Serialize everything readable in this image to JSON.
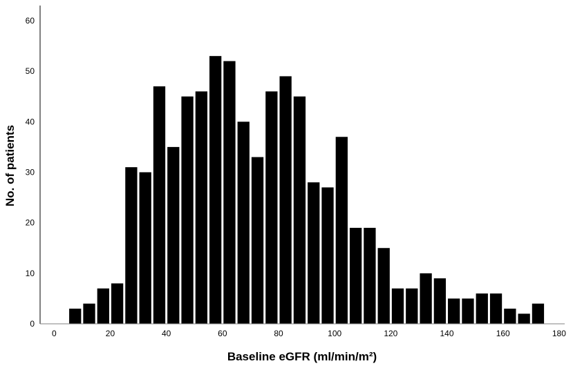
{
  "chart_data": {
    "type": "bar",
    "title": "",
    "xlabel": "Baseline eGFR (ml/min/m²)",
    "ylabel": "No. of patients",
    "xlim": [
      -5,
      182
    ],
    "ylim": [
      0,
      63
    ],
    "bin_width": 5,
    "x_ticks": [
      0,
      20,
      40,
      60,
      80,
      100,
      120,
      140,
      160,
      180
    ],
    "y_ticks": [
      0,
      10,
      20,
      30,
      40,
      50,
      60
    ],
    "grid": false,
    "bar_color": "#000000",
    "bins": [
      {
        "x": 7.5,
        "value": 3
      },
      {
        "x": 12.5,
        "value": 4
      },
      {
        "x": 17.5,
        "value": 7
      },
      {
        "x": 22.5,
        "value": 8
      },
      {
        "x": 27.5,
        "value": 31
      },
      {
        "x": 32.5,
        "value": 30
      },
      {
        "x": 37.5,
        "value": 47
      },
      {
        "x": 42.5,
        "value": 35
      },
      {
        "x": 47.5,
        "value": 45
      },
      {
        "x": 52.5,
        "value": 46
      },
      {
        "x": 57.5,
        "value": 53
      },
      {
        "x": 62.5,
        "value": 52
      },
      {
        "x": 67.5,
        "value": 40
      },
      {
        "x": 72.5,
        "value": 33
      },
      {
        "x": 77.5,
        "value": 46
      },
      {
        "x": 82.5,
        "value": 49
      },
      {
        "x": 87.5,
        "value": 45
      },
      {
        "x": 92.5,
        "value": 28
      },
      {
        "x": 97.5,
        "value": 27
      },
      {
        "x": 102.5,
        "value": 37
      },
      {
        "x": 107.5,
        "value": 19
      },
      {
        "x": 112.5,
        "value": 19
      },
      {
        "x": 117.5,
        "value": 15
      },
      {
        "x": 122.5,
        "value": 7
      },
      {
        "x": 127.5,
        "value": 7
      },
      {
        "x": 132.5,
        "value": 10
      },
      {
        "x": 137.5,
        "value": 9
      },
      {
        "x": 142.5,
        "value": 5
      },
      {
        "x": 147.5,
        "value": 5
      },
      {
        "x": 152.5,
        "value": 6
      },
      {
        "x": 157.5,
        "value": 6
      },
      {
        "x": 162.5,
        "value": 3
      },
      {
        "x": 167.5,
        "value": 2
      },
      {
        "x": 172.5,
        "value": 4
      }
    ]
  }
}
